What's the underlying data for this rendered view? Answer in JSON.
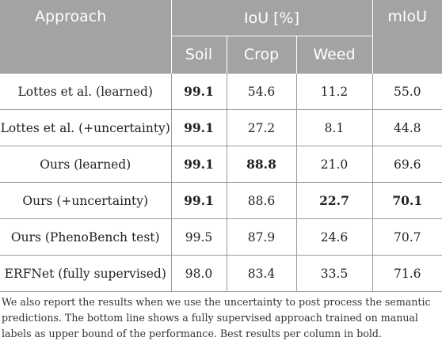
{
  "table": {
    "headers": {
      "approach": "Approach",
      "group": "IoU [%]",
      "soil": "Soil",
      "crop": "Crop",
      "weed": "Weed",
      "miou": "mIoU"
    },
    "rows": [
      {
        "approach": "Lottes et al. (learned)",
        "soil": "99.1",
        "crop": "54.6",
        "weed": "11.2",
        "miou": "55.0",
        "bold": [
          "soil"
        ]
      },
      {
        "approach": "Lottes et al. (+uncertainty)",
        "soil": "99.1",
        "crop": "27.2",
        "weed": "8.1",
        "miou": "44.8",
        "bold": [
          "soil"
        ]
      },
      {
        "approach": "Ours (learned)",
        "soil": "99.1",
        "crop": "88.8",
        "weed": "21.0",
        "miou": "69.6",
        "bold": [
          "soil",
          "crop"
        ]
      },
      {
        "approach": "Ours (+uncertainty)",
        "soil": "99.1",
        "crop": "88.6",
        "weed": "22.7",
        "miou": "70.1",
        "bold": [
          "soil",
          "weed",
          "miou"
        ]
      },
      {
        "approach": "Ours (PhenoBench test)",
        "soil": "99.5",
        "crop": "87.9",
        "weed": "24.6",
        "miou": "70.7",
        "bold": []
      },
      {
        "approach": "ERFNet (fully supervised)",
        "soil": "98.0",
        "crop": "83.4",
        "weed": "33.5",
        "miou": "71.6",
        "bold": []
      }
    ]
  },
  "caption": "We also report the results when we use the uncertainty to post process the semantic predictions. The bottom line shows a fully supervised approach trained on manual labels as upper bound of the performance. Best results per column in bold."
}
